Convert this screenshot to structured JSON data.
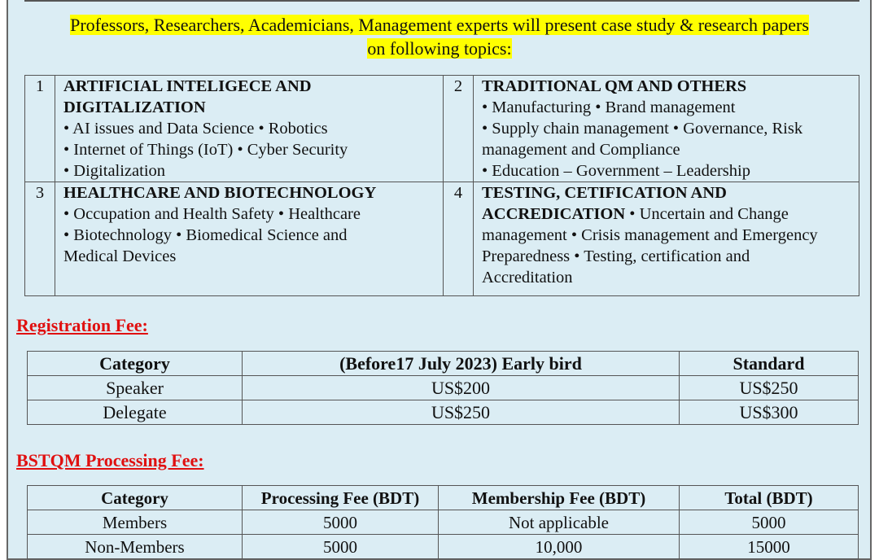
{
  "intro": {
    "line1": "Professors, Researchers, Academicians, Management experts will present case study & research papers",
    "line2": "on following topics:"
  },
  "topics": [
    {
      "num": "1",
      "title_lines": [
        "ARTIFICIAL INTELIGECE AND",
        "DIGITALIZATION"
      ],
      "lines": [
        "• AI issues and Data Science • Robotics",
        "• Internet of Things (IoT) • Cyber Security",
        "• Digitalization"
      ]
    },
    {
      "num": "2",
      "title_lines": [
        "TRADITIONAL QM AND OTHERS"
      ],
      "lines": [
        "• Manufacturing • Brand management",
        "• Supply chain management • Governance, Risk",
        "management and Compliance",
        "• Education – Government – Leadership"
      ]
    },
    {
      "num": "3",
      "title_lines": [
        "HEALTHCARE AND BIOTECHNOLOGY"
      ],
      "lines": [
        "• Occupation and Health Safety • Healthcare",
        "• Biotechnology • Biomedical Science and",
        "Medical Devices"
      ]
    },
    {
      "num": "4",
      "title_lines": [
        "TESTING, CETIFICATION AND",
        "ACCREDICATION"
      ],
      "title_tail": " • Uncertain and Change",
      "lines": [
        "management • Crisis management and Emergency",
        "Preparedness • Testing, certification and",
        "Accreditation"
      ]
    }
  ],
  "registration": {
    "heading": "Registration Fee:",
    "headers": [
      "Category",
      "(Before17 July 2023) Early bird",
      "Standard"
    ],
    "rows": [
      [
        "Speaker",
        "US$200",
        "US$250"
      ],
      [
        "Delegate",
        "US$250",
        "US$300"
      ]
    ]
  },
  "processing": {
    "heading": "BSTQM Processing Fee:",
    "headers": [
      "Category",
      "Processing Fee (BDT)",
      "Membership Fee (BDT)",
      "Total (BDT)"
    ],
    "rows": [
      [
        "Members",
        "5000",
        "Not applicable",
        "5000"
      ],
      [
        "Non-Members",
        "5000",
        "10,000",
        "15000"
      ]
    ]
  },
  "colors": {
    "background": "#dbedf4",
    "highlight": "#ffff00",
    "heading_red": "#e01010"
  }
}
